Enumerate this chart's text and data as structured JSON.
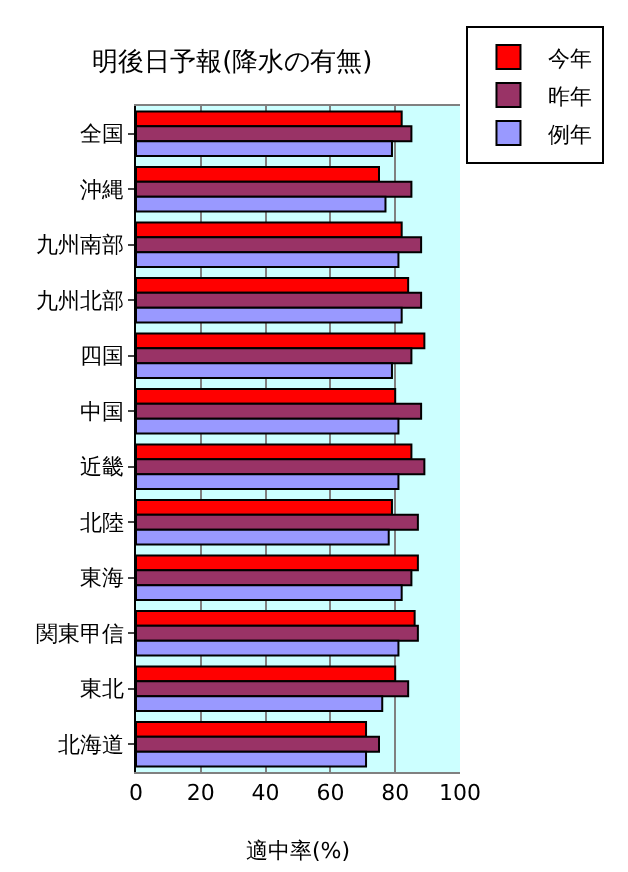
{
  "chart_data": {
    "type": "bar",
    "orientation": "horizontal",
    "title": "明後日予報(降水の有無)",
    "xlabel": "適中率(%)",
    "categories": [
      "全国",
      "沖縄",
      "九州南部",
      "九州北部",
      "四国",
      "中国",
      "近畿",
      "北陸",
      "東海",
      "関東甲信",
      "東北",
      "北海道"
    ],
    "series": [
      {
        "name": "今年",
        "color": "#ff0000",
        "values": [
          82,
          75,
          82,
          84,
          89,
          80,
          85,
          79,
          87,
          86,
          80,
          71
        ]
      },
      {
        "name": "昨年",
        "color": "#993366",
        "values": [
          85,
          85,
          88,
          88,
          85,
          88,
          89,
          87,
          85,
          87,
          84,
          75
        ]
      },
      {
        "name": "例年",
        "color": "#9999ff",
        "values": [
          79,
          77,
          81,
          82,
          79,
          81,
          81,
          78,
          82,
          81,
          76,
          71
        ]
      }
    ],
    "xlim": [
      0,
      100
    ],
    "xticks": [
      0,
      20,
      40,
      60,
      80,
      100
    ],
    "grid": "x",
    "legend": "top right"
  }
}
